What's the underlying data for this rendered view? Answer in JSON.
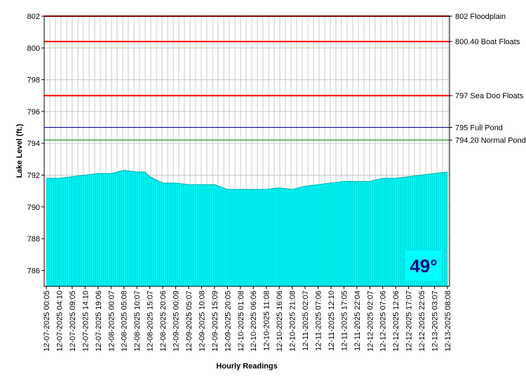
{
  "chart_data": {
    "type": "area",
    "xlabel": "Hourly Readings",
    "ylabel": "Lake Level (ft.)",
    "ylim": [
      785,
      802
    ],
    "yticks": [
      786,
      788,
      790,
      792,
      794,
      796,
      798,
      800,
      802
    ],
    "grid": true,
    "series_color": "#00ffff",
    "x_tick_labels": [
      "12-07-2025 00:05",
      "12-07-2025 04:10",
      "12-07-2025 09:05",
      "12-07-2025 14:10",
      "12-07-2025 19:06",
      "12-08-2025 00:07",
      "12-08-2025 05:08",
      "12-08-2025 10:07",
      "12-08-2025 15:07",
      "12-08-2025 20:06",
      "12-09-2025 00:09",
      "12-09-2025 05:07",
      "12-09-2025 10:08",
      "12-09-2025 15:09",
      "12-09-2025 20:05",
      "12-10-2025 01:08",
      "12-10-2025 06:06",
      "12-10-2025 11:08",
      "12-10-2025 16:06",
      "12-10-2025 21:08",
      "12-11-2025 02:07",
      "12-11-2025 07:06",
      "12-11-2025 12:10",
      "12-11-2025 17:05",
      "12-11-2025 22:04",
      "12-12-2025 02:07",
      "12-12-2025 07:06",
      "12-12-2025 12:06",
      "12-12-2025 17:07",
      "12-12-2025 22:05",
      "12-13-2025 03:07",
      "12-13-2025 08:08"
    ],
    "level_points": [
      [
        0,
        791.8
      ],
      [
        1,
        791.8
      ],
      [
        2,
        791.9
      ],
      [
        3,
        792.0
      ],
      [
        4,
        792.1
      ],
      [
        5,
        792.1
      ],
      [
        6,
        792.3
      ],
      [
        7,
        792.2
      ],
      [
        7.6,
        792.2
      ],
      [
        8,
        791.9
      ],
      [
        9,
        791.5
      ],
      [
        10,
        791.5
      ],
      [
        11,
        791.4
      ],
      [
        12,
        791.4
      ],
      [
        13,
        791.4
      ],
      [
        14,
        791.1
      ],
      [
        15,
        791.1
      ],
      [
        16,
        791.1
      ],
      [
        17,
        791.1
      ],
      [
        18,
        791.2
      ],
      [
        19,
        791.1
      ],
      [
        20,
        791.3
      ],
      [
        21,
        791.4
      ],
      [
        22,
        791.5
      ],
      [
        23,
        791.6
      ],
      [
        24,
        791.6
      ],
      [
        25,
        791.6
      ],
      [
        26,
        791.8
      ],
      [
        27,
        791.8
      ],
      [
        28,
        791.9
      ],
      [
        29,
        792.0
      ],
      [
        30,
        792.1
      ],
      [
        31,
        792.2
      ]
    ],
    "reference_lines": [
      {
        "value": 802,
        "label": "802 Floodplain",
        "color": "#ff0000"
      },
      {
        "value": 800.4,
        "label": "800.40 Boat Floats",
        "color": "#ff0000"
      },
      {
        "value": 797,
        "label": "797 Sea Doo Floats",
        "color": "#ff0000"
      },
      {
        "value": 795,
        "label": "795 Full Pond",
        "color": "#000080"
      },
      {
        "value": 794.2,
        "label": "794.20 Normal Pond",
        "color": "#008000"
      }
    ]
  },
  "temperature": {
    "text": "49°",
    "color": "#000080",
    "background": "#00ffff"
  }
}
